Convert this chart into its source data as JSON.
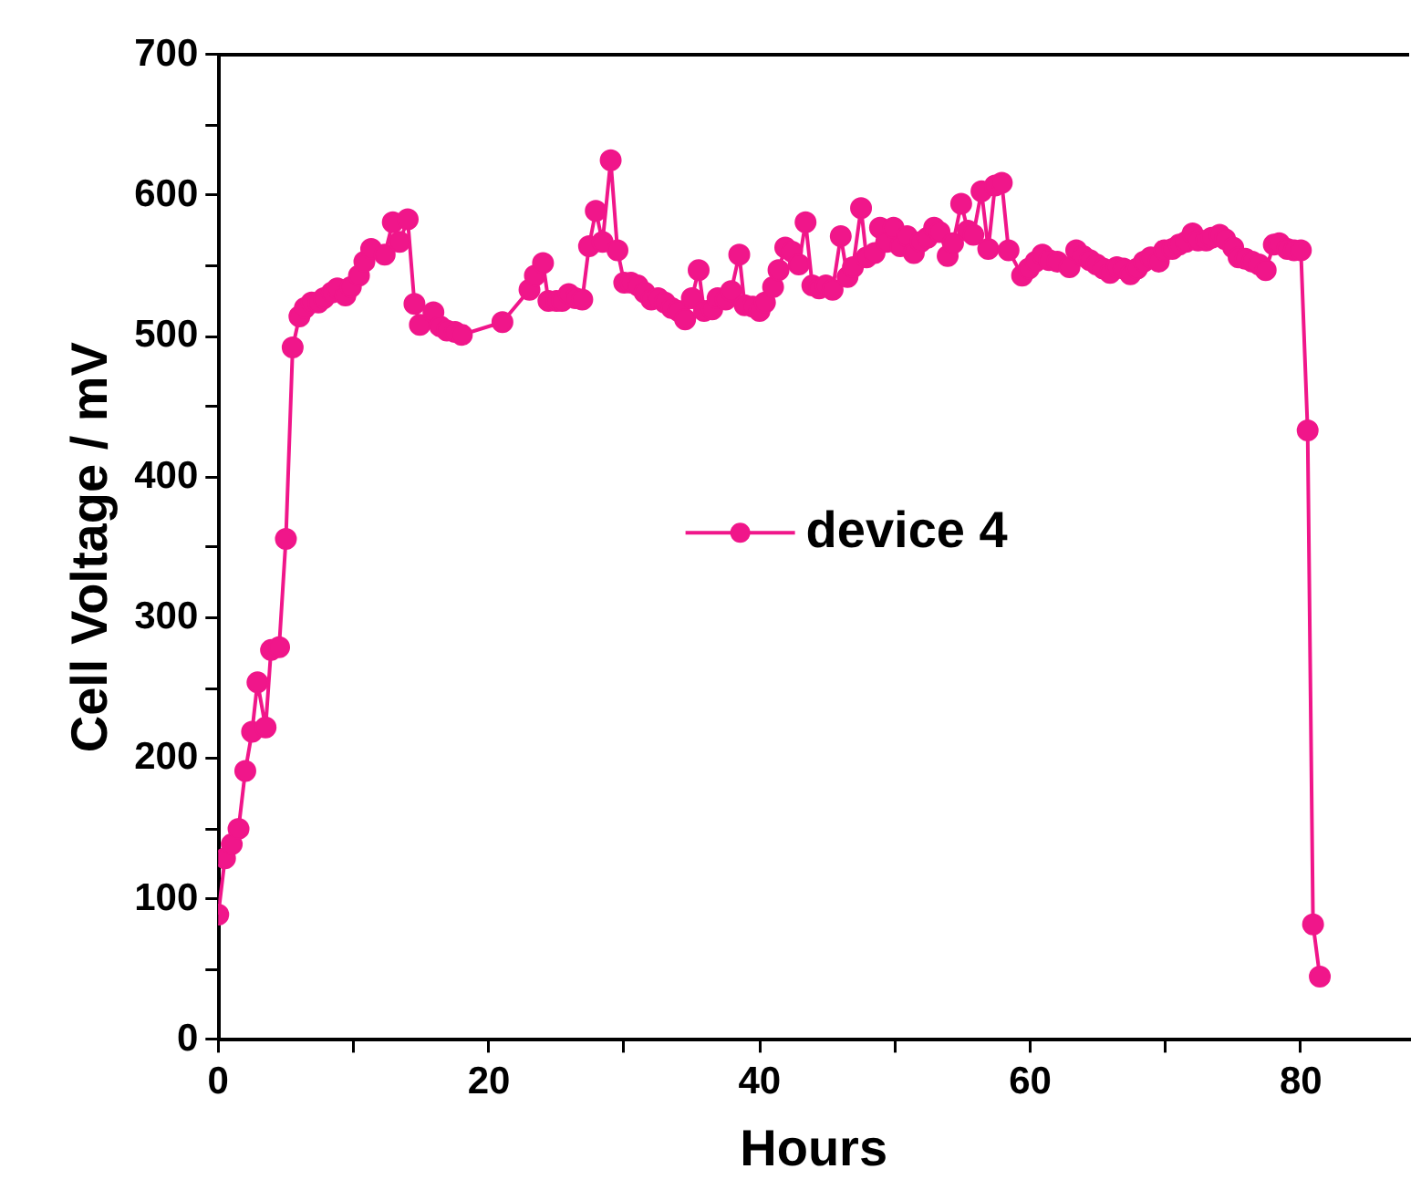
{
  "chart_data": {
    "type": "line",
    "xlabel": "Hours",
    "ylabel": "Cell Voltage / mV",
    "xlim": [
      0,
      88
    ],
    "ylim": [
      0,
      700
    ],
    "xticks": [
      0,
      {
        "value": 10,
        "label": null
      },
      20,
      {
        "value": 30,
        "label": null
      },
      40,
      {
        "value": 50,
        "label": null
      },
      60,
      {
        "value": 70,
        "label": null
      },
      80
    ],
    "yticks": [
      0,
      {
        "value": 50,
        "label": null
      },
      100,
      {
        "value": 150,
        "label": null
      },
      200,
      {
        "value": 250,
        "label": null
      },
      300,
      {
        "value": 350,
        "label": null
      },
      400,
      {
        "value": 450,
        "label": null
      },
      500,
      {
        "value": 550,
        "label": null
      },
      600,
      {
        "value": 650,
        "label": null
      },
      700
    ],
    "grid": false,
    "legend": "center",
    "marker": "circle",
    "line_style": "solid",
    "series": [
      {
        "name": "device 4",
        "color": "#f0168a",
        "x": [
          0,
          0.5,
          1.0,
          1.5,
          2.0,
          2.5,
          2.9,
          3.5,
          3.9,
          4.5,
          5.0,
          5.5,
          6.0,
          6.4,
          6.9,
          7.4,
          7.8,
          8.4,
          8.8,
          9.4,
          9.8,
          10.4,
          10.8,
          11.3,
          12.3,
          12.9,
          13.4,
          14.0,
          14.5,
          14.9,
          15.9,
          16.4,
          16.9,
          17.5,
          18.0,
          21.0,
          23.0,
          23.4,
          24.0,
          24.4,
          25.0,
          25.4,
          25.9,
          26.4,
          26.9,
          27.4,
          27.9,
          28.4,
          29.0,
          29.5,
          30.0,
          30.5,
          31.0,
          31.5,
          32.0,
          32.5,
          33.0,
          33.5,
          34.0,
          34.5,
          35.0,
          35.5,
          35.9,
          36.5,
          36.9,
          37.5,
          37.9,
          38.5,
          38.9,
          39.5,
          40.0,
          40.4,
          41.0,
          41.4,
          41.9,
          42.4,
          42.9,
          43.4,
          43.9,
          44.4,
          44.9,
          45.4,
          46.0,
          46.5,
          46.9,
          47.5,
          47.9,
          48.5,
          48.9,
          49.4,
          49.9,
          50.4,
          50.9,
          51.4,
          51.9,
          52.4,
          52.9,
          53.3,
          53.9,
          54.3,
          54.9,
          55.4,
          55.8,
          56.4,
          56.9,
          57.4,
          57.9,
          58.4,
          59.4,
          59.9,
          60.4,
          60.9,
          61.4,
          62.0,
          62.9,
          63.4,
          63.9,
          64.4,
          64.9,
          65.4,
          65.9,
          66.4,
          66.9,
          67.4,
          67.9,
          68.4,
          68.9,
          69.5,
          69.9,
          70.5,
          71.0,
          71.5,
          72.0,
          72.4,
          73.0,
          73.4,
          74.0,
          74.4,
          75.0,
          75.4,
          75.9,
          76.4,
          76.9,
          77.4,
          78.0,
          78.4,
          79.0,
          79.5,
          80.0,
          80.5,
          80.9,
          81.4
        ],
        "values": [
          89,
          129,
          139,
          150,
          191,
          219,
          254,
          222,
          277,
          279,
          356,
          492,
          514,
          520,
          524,
          524,
          527,
          531,
          534,
          529,
          535,
          543,
          553,
          562,
          558,
          581,
          567,
          583,
          523,
          508,
          517,
          507,
          504,
          503,
          501,
          510,
          533,
          543,
          552,
          525,
          525,
          525,
          530,
          527,
          526,
          564,
          589,
          567,
          625,
          561,
          538,
          538,
          536,
          531,
          526,
          527,
          524,
          520,
          518,
          512,
          527,
          547,
          518,
          519,
          527,
          526,
          532,
          558,
          522,
          521,
          518,
          524,
          535,
          547,
          563,
          560,
          551,
          581,
          536,
          534,
          536,
          533,
          571,
          542,
          549,
          591,
          556,
          559,
          577,
          567,
          577,
          564,
          571,
          559,
          567,
          570,
          577,
          574,
          557,
          566,
          594,
          575,
          572,
          603,
          562,
          607,
          609,
          561,
          543,
          548,
          553,
          558,
          554,
          553,
          549,
          561,
          557,
          554,
          551,
          548,
          545,
          549,
          548,
          544,
          548,
          553,
          556,
          553,
          561,
          562,
          565,
          567,
          573,
          568,
          568,
          570,
          572,
          569,
          563,
          556,
          555,
          553,
          551,
          547,
          565,
          566,
          562,
          561,
          561,
          433,
          82,
          45
        ]
      }
    ]
  }
}
